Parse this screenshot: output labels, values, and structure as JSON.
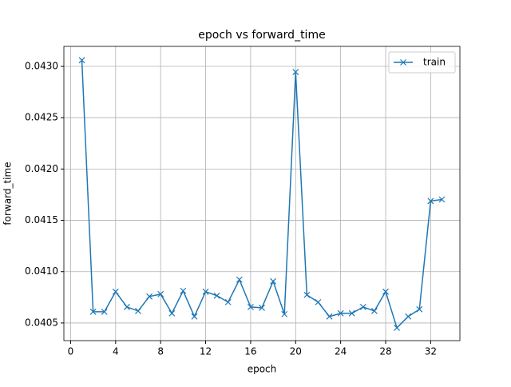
{
  "chart_data": {
    "type": "line",
    "title": "epoch vs forward_time",
    "x_label": "epoch",
    "y_label": "forward_time",
    "x": [
      1,
      2,
      3,
      4,
      5,
      6,
      7,
      8,
      9,
      10,
      11,
      12,
      13,
      14,
      15,
      16,
      17,
      18,
      19,
      20,
      21,
      22,
      23,
      24,
      25,
      26,
      27,
      28,
      29,
      30,
      31,
      32,
      33
    ],
    "series": [
      {
        "name": "train",
        "color": "#1f77b4",
        "marker": "x",
        "values": [
          0.04306,
          0.040609,
          0.040609,
          0.040805,
          0.040656,
          0.040617,
          0.040758,
          0.040781,
          0.040594,
          0.040813,
          0.040563,
          0.040805,
          0.040766,
          0.040703,
          0.040922,
          0.040656,
          0.040648,
          0.040906,
          0.040586,
          0.042945,
          0.040773,
          0.040703,
          0.040563,
          0.040594,
          0.040594,
          0.040656,
          0.040617,
          0.040805,
          0.040453,
          0.040563,
          0.040633,
          0.041688,
          0.041703
        ]
      }
    ],
    "xlim": [
      -0.6,
      34.6
    ],
    "ylim": [
      0.040328,
      0.043195
    ],
    "xticks": [
      0,
      4,
      8,
      12,
      16,
      20,
      24,
      28,
      32
    ],
    "yticks": [
      0.0405,
      {
        "value": 0.041,
        "label": "0.0410"
      },
      0.0415,
      {
        "value": 0.042,
        "label": "0.0420"
      },
      0.0425,
      {
        "value": 0.043,
        "label": "0.0430"
      }
    ],
    "grid": true,
    "legend": "upper right"
  }
}
